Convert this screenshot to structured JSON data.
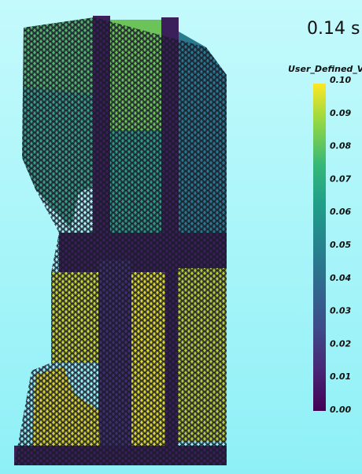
{
  "time_label": "0.14 s",
  "colorbar": {
    "title": "User_Defined_Va",
    "ticks": [
      "0.10",
      "0.09",
      "0.08",
      "0.07",
      "0.06",
      "0.05",
      "0.04",
      "0.03",
      "0.02",
      "0.01",
      "0.00"
    ]
  }
}
